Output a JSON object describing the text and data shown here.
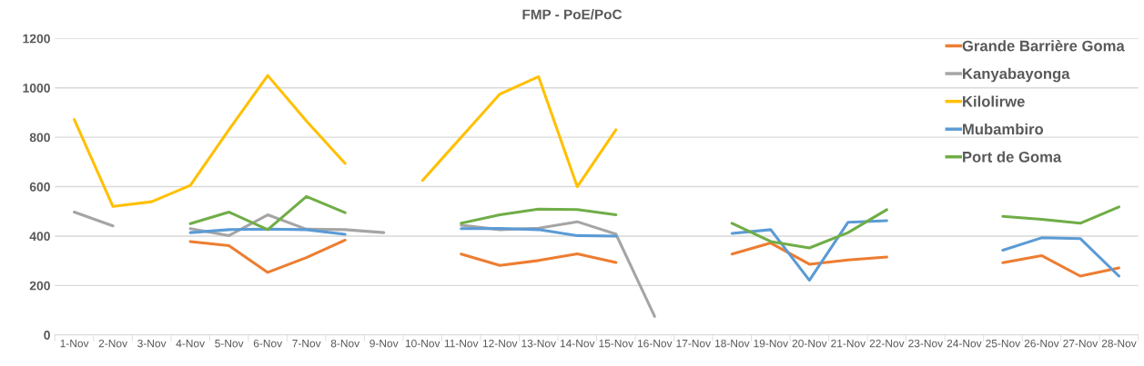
{
  "chart_data": {
    "type": "line",
    "title": "FMP - PoE/PoC",
    "categories": [
      "1-Nov",
      "2-Nov",
      "3-Nov",
      "4-Nov",
      "5-Nov",
      "6-Nov",
      "7-Nov",
      "8-Nov",
      "9-Nov",
      "10-Nov",
      "11-Nov",
      "12-Nov",
      "13-Nov",
      "14-Nov",
      "15-Nov",
      "16-Nov",
      "17-Nov",
      "18-Nov",
      "19-Nov",
      "20-Nov",
      "21-Nov",
      "22-Nov",
      "23-Nov",
      "24-Nov",
      "25-Nov",
      "26-Nov",
      "27-Nov",
      "28-Nov"
    ],
    "series": [
      {
        "name": "Grande Barrière Goma",
        "color": "#ed7d31",
        "values": [
          null,
          null,
          null,
          378,
          361,
          253,
          313,
          384,
          null,
          null,
          327,
          281,
          301,
          328,
          293,
          null,
          null,
          327,
          372,
          286,
          303,
          315,
          null,
          null,
          292,
          321,
          238,
          271
        ]
      },
      {
        "name": "Kanyabayonga",
        "color": "#a5a5a5",
        "values": [
          497,
          441,
          null,
          430,
          402,
          486,
          428,
          426,
          414,
          null,
          444,
          426,
          432,
          458,
          408,
          75,
          null,
          null,
          null,
          null,
          null,
          null,
          null,
          null,
          null,
          null,
          null,
          null
        ]
      },
      {
        "name": "Kilolirwe",
        "color": "#ffc000",
        "values": [
          872,
          520,
          539,
          605,
          831,
          1050,
          866,
          694,
          null,
          625,
          800,
          975,
          1045,
          600,
          830,
          null,
          null,
          null,
          null,
          null,
          null,
          null,
          null,
          null,
          null,
          null,
          null,
          null
        ]
      },
      {
        "name": "Mubambiro",
        "color": "#5b9bd5",
        "values": [
          null,
          null,
          null,
          414,
          426,
          428,
          426,
          407,
          null,
          null,
          430,
          431,
          426,
          402,
          400,
          null,
          null,
          411,
          426,
          221,
          456,
          462,
          null,
          null,
          343,
          393,
          390,
          238
        ]
      },
      {
        "name": "Port de Goma",
        "color": "#70ad47",
        "values": [
          null,
          null,
          null,
          450,
          497,
          426,
          560,
          495,
          null,
          null,
          452,
          486,
          509,
          507,
          486,
          null,
          null,
          452,
          378,
          352,
          414,
          507,
          null,
          null,
          480,
          468,
          452,
          518
        ]
      }
    ],
    "ylim": [
      0,
      1200
    ],
    "yticks": [
      0,
      200,
      400,
      600,
      800,
      1000,
      1200
    ],
    "grid": "y",
    "legend": "top right",
    "marker": "none",
    "line_style": "solid"
  }
}
